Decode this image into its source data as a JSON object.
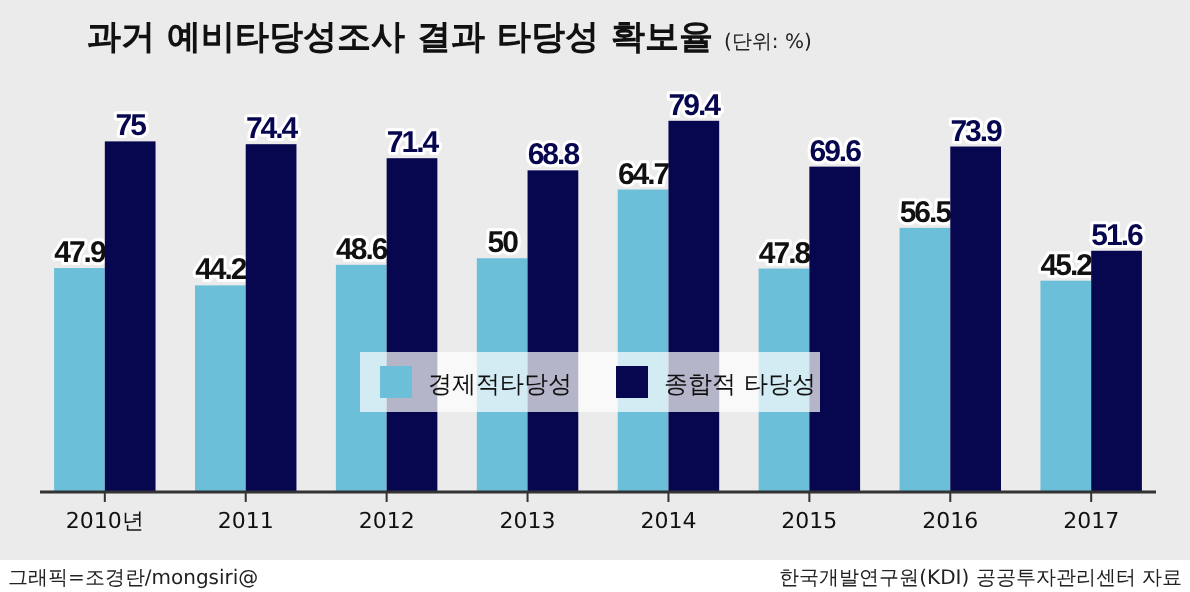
{
  "chart_data": {
    "type": "bar",
    "title": "과거 예비타당성조사 결과 타당성 확보율",
    "subtitle": "(단위: %)",
    "categories": [
      "2010년",
      "2011",
      "2012",
      "2013",
      "2014",
      "2015",
      "2016",
      "2017"
    ],
    "series": [
      {
        "name": "경제적타당성",
        "color": "#6bbfd8",
        "values": [
          47.9,
          44.2,
          48.6,
          50,
          64.7,
          47.8,
          56.5,
          45.2
        ]
      },
      {
        "name": "종합적 타당성",
        "color": "#07074f",
        "values": [
          75,
          74.4,
          71.4,
          68.8,
          79.4,
          69.6,
          73.9,
          51.6
        ]
      }
    ],
    "ylim": [
      0,
      80
    ],
    "tick_labels": "x",
    "data_labels": true,
    "legend": "bottom",
    "grid": false,
    "annotations": [
      "그래픽=조경란/mongsiri@",
      "한국개발연구원(KDI) 공공투자관리센터 자료"
    ]
  }
}
